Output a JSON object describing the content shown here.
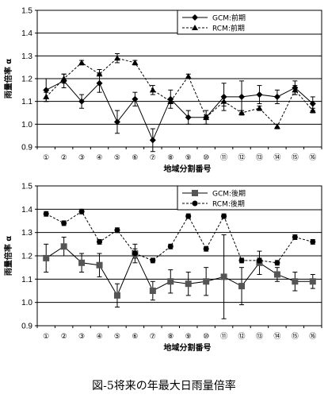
{
  "caption": "図-5将来の年最大日雨量倍率",
  "chart_data": [
    {
      "type": "line",
      "xlabel": "地域分割番号",
      "ylabel": "雨量倍率 α",
      "ylim": [
        0.9,
        1.5
      ],
      "yticks": [
        "1.5",
        "1.4",
        "1.3",
        "1.2",
        "1.1",
        "1.0",
        "0.9"
      ],
      "ytick_values": [
        1.5,
        1.4,
        1.3,
        1.2,
        1.1,
        1.0,
        0.9
      ],
      "categories": [
        "①",
        "②",
        "③",
        "④",
        "⑤",
        "⑥",
        "⑦",
        "⑧",
        "⑨",
        "⑩",
        "⑪",
        "⑫",
        "⑬",
        "⑭",
        "⑮",
        "⑯"
      ],
      "grid": true,
      "legend_position": "top-right",
      "series": [
        {
          "name": "GCM:前期",
          "marker": "diamond",
          "line": "solid",
          "values": [
            1.15,
            1.19,
            1.1,
            1.18,
            1.01,
            1.11,
            0.93,
            1.11,
            1.03,
            1.03,
            1.12,
            1.12,
            1.13,
            1.12,
            1.16,
            1.09
          ],
          "err": [
            0.05,
            0.03,
            0.03,
            0.04,
            0.05,
            0.03,
            0.05,
            0.04,
            0.03,
            0.03,
            0.06,
            0.07,
            0.04,
            0.03,
            0.03,
            0.03
          ]
        },
        {
          "name": "RCM:前期",
          "marker": "triangle",
          "line": "dashed",
          "values": [
            1.12,
            1.2,
            1.27,
            1.22,
            1.29,
            1.27,
            1.15,
            1.1,
            1.21,
            1.03,
            1.1,
            1.05,
            1.07,
            0.99,
            1.15,
            1.06
          ],
          "err": [
            0.02,
            0.02,
            0.01,
            0.02,
            0.02,
            0.01,
            0.02,
            0.01,
            0.01,
            0.01,
            0.02,
            0.01,
            0.01,
            0.01,
            0.02,
            0.01
          ]
        }
      ]
    },
    {
      "type": "line",
      "xlabel": "地域分割番号",
      "ylabel": "雨量倍率 α",
      "ylim": [
        0.9,
        1.5
      ],
      "yticks": [
        "1.5",
        "1.4",
        "1.3",
        "1.2",
        "1.1",
        "1.0",
        "0.9"
      ],
      "ytick_values": [
        1.5,
        1.4,
        1.3,
        1.2,
        1.1,
        1.0,
        0.9
      ],
      "categories": [
        "①",
        "②",
        "③",
        "④",
        "⑤",
        "⑥",
        "⑦",
        "⑧",
        "⑨",
        "⑩",
        "⑪",
        "⑫",
        "⑬",
        "⑭",
        "⑮",
        "⑯"
      ],
      "grid": true,
      "legend_position": "top-right",
      "series": [
        {
          "name": "GCM:後期",
          "marker": "square",
          "line": "solid",
          "values": [
            1.19,
            1.24,
            1.17,
            1.16,
            1.03,
            1.21,
            1.05,
            1.09,
            1.08,
            1.09,
            1.11,
            1.07,
            1.17,
            1.12,
            1.09,
            1.09
          ],
          "err": [
            0.06,
            0.04,
            0.04,
            0.05,
            0.05,
            0.04,
            0.04,
            0.05,
            0.05,
            0.06,
            0.18,
            0.08,
            0.05,
            0.03,
            0.04,
            0.03
          ]
        },
        {
          "name": "RCM:後期",
          "marker": "circle",
          "line": "dashed",
          "values": [
            1.38,
            1.34,
            1.39,
            1.26,
            1.31,
            1.21,
            1.18,
            1.24,
            1.37,
            1.23,
            1.37,
            1.18,
            1.18,
            1.17,
            1.28,
            1.26
          ],
          "err": [
            0.01,
            0.01,
            0.01,
            0.01,
            0.01,
            0.02,
            0.01,
            0.01,
            0.01,
            0.01,
            0.01,
            0.01,
            0.01,
            0.01,
            0.01,
            0.01
          ]
        }
      ]
    }
  ]
}
